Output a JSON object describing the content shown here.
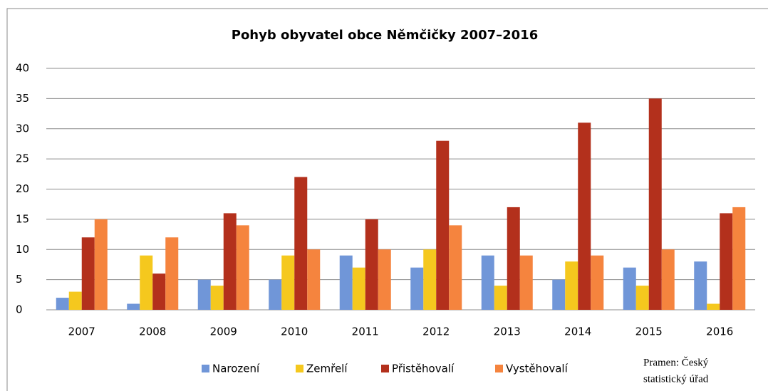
{
  "chart_data": {
    "type": "bar",
    "title": "Pohyb obyvatel obce Němčičky 2007–2016",
    "categories": [
      "2007",
      "2008",
      "2009",
      "2010",
      "2011",
      "2012",
      "2013",
      "2014",
      "2015",
      "2016"
    ],
    "series": [
      {
        "name": "Narození",
        "color": "#7096d8",
        "values": [
          2,
          1,
          5,
          5,
          9,
          7,
          9,
          5,
          7,
          8
        ]
      },
      {
        "name": "Zemřelí",
        "color": "#f5c81e",
        "values": [
          3,
          9,
          4,
          9,
          7,
          10,
          4,
          8,
          4,
          1
        ]
      },
      {
        "name": "Přistěhovalí",
        "color": "#b3301c",
        "values": [
          12,
          6,
          16,
          22,
          15,
          28,
          17,
          31,
          35,
          16
        ]
      },
      {
        "name": "Vystěhovalí",
        "color": "#f5843e",
        "values": [
          15,
          12,
          14,
          10,
          10,
          14,
          9,
          9,
          10,
          17
        ]
      }
    ],
    "ylim": [
      0,
      40
    ],
    "yticks": [
      0,
      5,
      10,
      15,
      20,
      25,
      30,
      35,
      40
    ],
    "grid": true,
    "legend": "bottom",
    "source": [
      "Pramen: Český",
      "statistický úřad"
    ]
  }
}
